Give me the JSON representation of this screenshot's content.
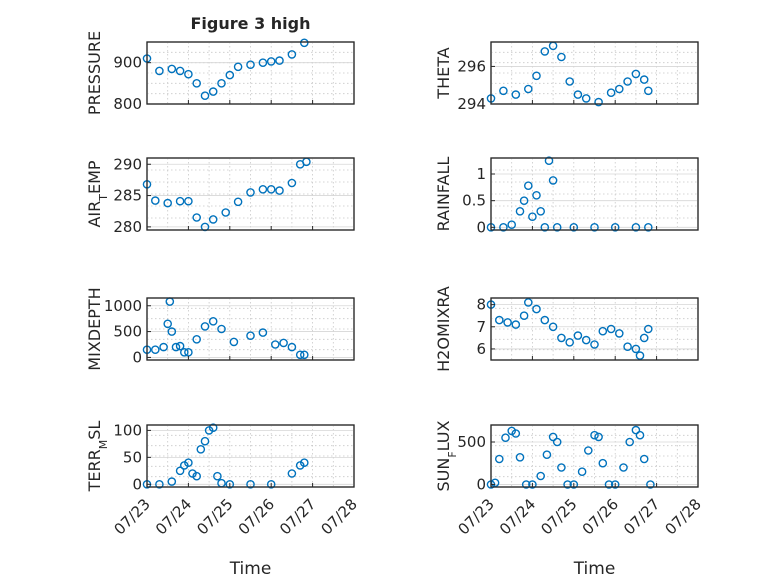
{
  "figure": {
    "title": "Figure 3 high",
    "xlabel": "Time",
    "date_ticks": [
      "07/23",
      "07/24",
      "07/25",
      "07/26",
      "07/27",
      "07/28"
    ]
  },
  "chart_data": [
    {
      "type": "scatter",
      "ylabel_main": "PRESSURE",
      "ylabel_sub": "",
      "ylabel_tail": "",
      "ylim": [
        800,
        950
      ],
      "yticks": [
        800,
        900
      ],
      "marker_color": "#0072BD",
      "x": [
        0,
        0.3,
        0.6,
        0.8,
        1.0,
        1.2,
        1.4,
        1.6,
        1.8,
        2.0,
        2.2,
        2.5,
        2.8,
        3.0,
        3.2,
        3.5,
        3.8
      ],
      "y": [
        910,
        880,
        885,
        880,
        872,
        850,
        820,
        830,
        850,
        870,
        890,
        895,
        900,
        903,
        905,
        920,
        948
      ]
    },
    {
      "type": "scatter",
      "ylabel_main": "THETA",
      "ylabel_sub": "",
      "ylabel_tail": "",
      "ylim": [
        294,
        297.3
      ],
      "yticks": [
        294,
        296
      ],
      "marker_color": "#0072BD",
      "x": [
        0,
        0.3,
        0.6,
        0.9,
        1.1,
        1.3,
        1.5,
        1.7,
        1.9,
        2.1,
        2.3,
        2.6,
        2.9,
        3.1,
        3.3,
        3.5,
        3.7,
        3.8
      ],
      "y": [
        294.3,
        294.7,
        294.5,
        294.8,
        295.5,
        296.8,
        297.1,
        296.5,
        295.2,
        294.5,
        294.3,
        294.1,
        294.6,
        294.8,
        295.2,
        295.6,
        295.3,
        294.7
      ]
    },
    {
      "type": "scatter",
      "ylabel_main": "AIR",
      "ylabel_sub": "T",
      "ylabel_tail": "EMP",
      "ylim": [
        279.5,
        291
      ],
      "yticks": [
        280,
        285,
        290
      ],
      "marker_color": "#0072BD",
      "x": [
        0,
        0.2,
        0.5,
        0.8,
        1.0,
        1.2,
        1.4,
        1.6,
        1.9,
        2.2,
        2.5,
        2.8,
        3.0,
        3.2,
        3.5,
        3.7,
        3.85
      ],
      "y": [
        286.8,
        284.2,
        283.8,
        284.1,
        284.1,
        281.5,
        280.0,
        281.2,
        282.3,
        284.0,
        285.5,
        286.0,
        286.0,
        285.8,
        287.0,
        290.0,
        290.4
      ]
    },
    {
      "type": "scatter",
      "ylabel_main": "RAINFALL",
      "ylabel_sub": "",
      "ylabel_tail": "",
      "ylim": [
        -0.05,
        1.3
      ],
      "yticks": [
        0,
        0.5,
        1
      ],
      "marker_color": "#0072BD",
      "x": [
        0,
        0.3,
        0.5,
        0.7,
        0.8,
        0.9,
        1.0,
        1.1,
        1.2,
        1.3,
        1.4,
        1.5,
        1.6,
        2.0,
        2.5,
        3.0,
        3.5,
        3.8
      ],
      "y": [
        0,
        0,
        0.05,
        0.3,
        0.5,
        0.78,
        0.2,
        0.6,
        0.3,
        0,
        1.25,
        0.88,
        0,
        0,
        0,
        0,
        0,
        0
      ]
    },
    {
      "type": "scatter",
      "ylabel_main": "MIXDEPTH",
      "ylabel_sub": "",
      "ylabel_tail": "",
      "ylim": [
        -50,
        1150
      ],
      "yticks": [
        0,
        500,
        1000
      ],
      "marker_color": "#0072BD",
      "x": [
        0,
        0.2,
        0.4,
        0.5,
        0.55,
        0.6,
        0.7,
        0.8,
        0.9,
        1.0,
        1.2,
        1.4,
        1.6,
        1.8,
        2.1,
        2.5,
        2.8,
        3.1,
        3.3,
        3.5,
        3.7,
        3.8
      ],
      "y": [
        150,
        150,
        200,
        650,
        1080,
        500,
        200,
        220,
        100,
        100,
        350,
        600,
        700,
        550,
        300,
        420,
        480,
        250,
        280,
        200,
        50,
        50
      ]
    },
    {
      "type": "scatter",
      "ylabel_main": "H2OMIXRA",
      "ylabel_sub": "",
      "ylabel_tail": "",
      "ylim": [
        5.5,
        8.3
      ],
      "yticks": [
        6,
        7,
        8
      ],
      "marker_color": "#0072BD",
      "x": [
        0,
        0.2,
        0.4,
        0.6,
        0.8,
        0.9,
        1.1,
        1.3,
        1.5,
        1.7,
        1.9,
        2.1,
        2.3,
        2.5,
        2.7,
        2.9,
        3.1,
        3.3,
        3.5,
        3.6,
        3.7,
        3.8
      ],
      "y": [
        8.0,
        7.3,
        7.2,
        7.1,
        7.5,
        8.1,
        7.8,
        7.3,
        7.0,
        6.5,
        6.3,
        6.6,
        6.4,
        6.2,
        6.8,
        6.9,
        6.7,
        6.1,
        6.0,
        5.7,
        6.5,
        6.9
      ]
    },
    {
      "type": "scatter",
      "ylabel_main": "TERR",
      "ylabel_sub": "M",
      "ylabel_tail": "SL",
      "ylim": [
        -5,
        110
      ],
      "yticks": [
        0,
        50,
        100
      ],
      "marker_color": "#0072BD",
      "x": [
        0,
        0.3,
        0.6,
        0.8,
        0.9,
        1.0,
        1.1,
        1.2,
        1.3,
        1.4,
        1.5,
        1.6,
        1.7,
        1.8,
        2.0,
        2.5,
        3.0,
        3.5,
        3.7,
        3.8
      ],
      "y": [
        0,
        0,
        5,
        25,
        35,
        40,
        20,
        15,
        65,
        80,
        100,
        105,
        15,
        2,
        0,
        0,
        0,
        20,
        35,
        40
      ]
    },
    {
      "type": "scatter",
      "ylabel_main": "SUN",
      "ylabel_sub": "F",
      "ylabel_tail": "LUX",
      "ylim": [
        -30,
        700
      ],
      "yticks": [
        0,
        500
      ],
      "marker_color": "#0072BD",
      "x": [
        0,
        0.1,
        0.2,
        0.35,
        0.5,
        0.6,
        0.7,
        0.85,
        1.0,
        1.2,
        1.35,
        1.5,
        1.6,
        1.7,
        1.85,
        2.0,
        2.2,
        2.35,
        2.5,
        2.6,
        2.7,
        2.85,
        3.0,
        3.2,
        3.35,
        3.5,
        3.6,
        3.7,
        3.85
      ],
      "y": [
        0,
        20,
        300,
        550,
        630,
        600,
        320,
        0,
        0,
        100,
        350,
        560,
        500,
        200,
        0,
        0,
        150,
        400,
        580,
        560,
        250,
        0,
        0,
        200,
        500,
        640,
        580,
        300,
        0
      ]
    }
  ]
}
